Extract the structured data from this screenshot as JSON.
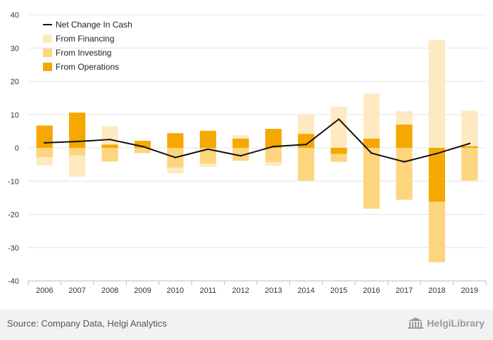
{
  "chart_data": {
    "type": "bar",
    "stacked": true,
    "categories": [
      "2006",
      "2007",
      "2008",
      "2009",
      "2010",
      "2011",
      "2012",
      "2013",
      "2014",
      "2015",
      "2016",
      "2017",
      "2018",
      "2019"
    ],
    "ylim": [
      -40,
      40
    ],
    "yticks": [
      -40,
      -30,
      -20,
      -10,
      0,
      10,
      20,
      30,
      40
    ],
    "grid": true,
    "legend_position": "top-left",
    "series": [
      {
        "name": "From Operations",
        "kind": "bar",
        "color": "#f5a800",
        "values": [
          6.7,
          10.6,
          1.0,
          2.1,
          4.4,
          5.1,
          2.8,
          5.7,
          4.2,
          -1.8,
          2.8,
          7.0,
          -16.2,
          0.5
        ]
      },
      {
        "name": "From Investing",
        "kind": "bar",
        "color": "#fdd57e",
        "values": [
          -2.8,
          -2.3,
          -4.1,
          -1.6,
          -6.0,
          -4.8,
          -3.9,
          -4.3,
          -9.9,
          -2.4,
          -18.3,
          -15.6,
          -18.2,
          -9.8
        ]
      },
      {
        "name": "From Financing",
        "kind": "bar",
        "color": "#fdeac0",
        "values": [
          -2.5,
          -6.4,
          5.5,
          0.0,
          -1.7,
          -0.9,
          1.0,
          -1.1,
          5.8,
          12.4,
          13.5,
          4.0,
          32.4,
          10.6
        ]
      },
      {
        "name": "Net Change In Cash",
        "kind": "line",
        "color": "#111111",
        "values": [
          1.5,
          1.9,
          2.5,
          0.4,
          -2.9,
          -0.4,
          -2.4,
          0.4,
          1.0,
          8.6,
          -1.6,
          -4.2,
          -1.7,
          1.3
        ]
      }
    ]
  },
  "legend": [
    {
      "label": "Net Change In Cash",
      "kind": "line",
      "color": "#111111"
    },
    {
      "label": "From Financing",
      "kind": "bar",
      "color": "#fdeac0"
    },
    {
      "label": "From Investing",
      "kind": "bar",
      "color": "#fdd57e"
    },
    {
      "label": "From Operations",
      "kind": "bar",
      "color": "#f5a800"
    }
  ],
  "footer": {
    "source": "Source: Company Data, Helgi Analytics",
    "logo_text": "HelgiLibrary",
    "logo_icon": "library-building-icon"
  }
}
